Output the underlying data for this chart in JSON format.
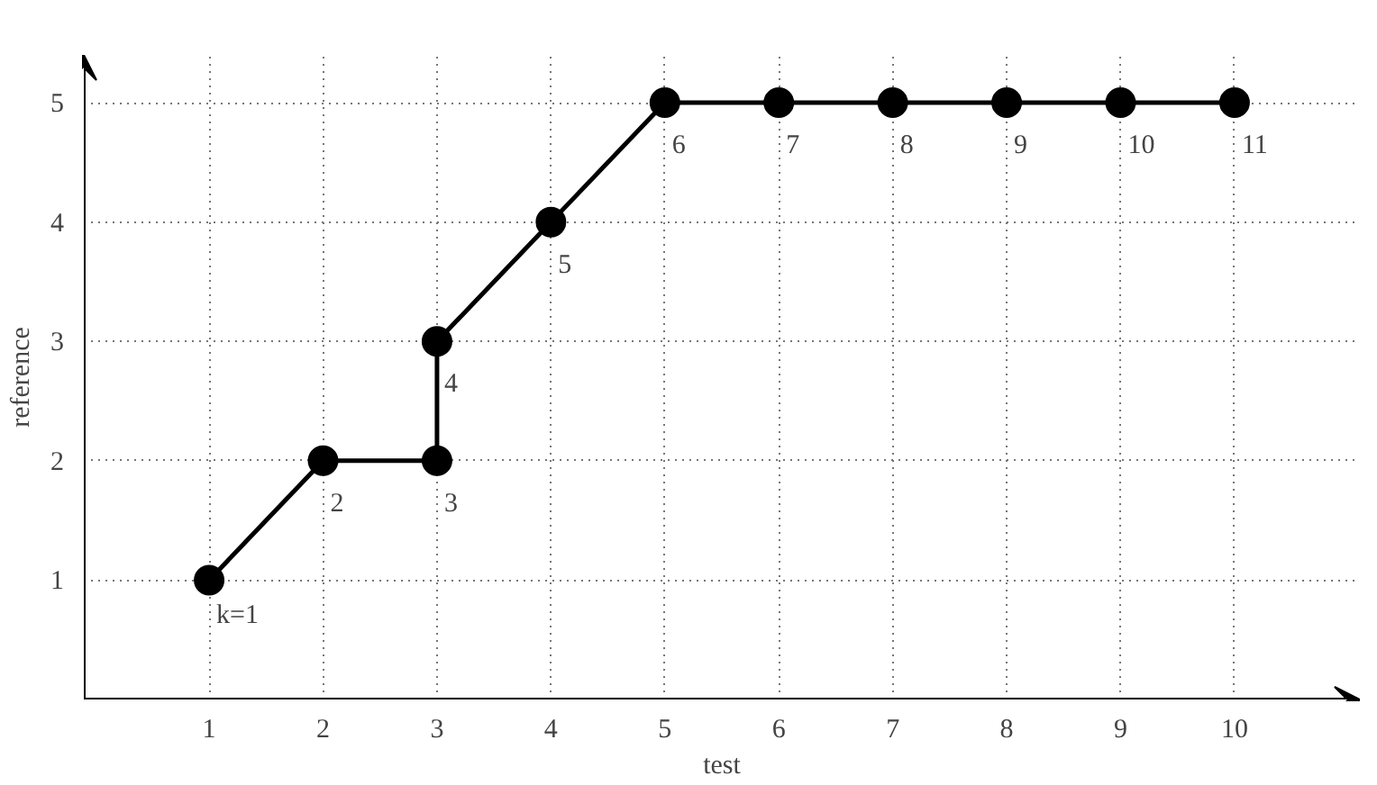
{
  "chart_data": {
    "type": "line",
    "xlabel": "test",
    "ylabel": "reference",
    "x": [
      1,
      2,
      3,
      3,
      4,
      5,
      6,
      7,
      8,
      9,
      10
    ],
    "series": [
      {
        "color": "#000000",
        "values": [
          1,
          2,
          2,
          3,
          4,
          5,
          5,
          5,
          5,
          5,
          5
        ]
      }
    ],
    "xlim": [
      -0.1,
      11.1
    ],
    "ylim": [
      0,
      5.4
    ],
    "xticks": [
      1,
      2,
      3,
      4,
      5,
      6,
      7,
      8,
      9,
      10
    ],
    "yticks": [
      1,
      2,
      3,
      4,
      5
    ],
    "grid": true,
    "marker": "circle",
    "line_style": "solid",
    "annotations": [
      {
        "text": "k=1",
        "x": 1,
        "y": 1
      },
      {
        "text": "2",
        "x": 2,
        "y": 2
      },
      {
        "text": "3",
        "x": 3,
        "y": 2
      },
      {
        "text": "4",
        "x": 3,
        "y": 3
      },
      {
        "text": "5",
        "x": 4,
        "y": 4
      },
      {
        "text": "6",
        "x": 5,
        "y": 5
      },
      {
        "text": "7",
        "x": 6,
        "y": 5
      },
      {
        "text": "8",
        "x": 7,
        "y": 5
      },
      {
        "text": "9",
        "x": 8,
        "y": 5
      },
      {
        "text": "10",
        "x": 9,
        "y": 5
      },
      {
        "text": "11",
        "x": 10,
        "y": 5
      }
    ]
  }
}
